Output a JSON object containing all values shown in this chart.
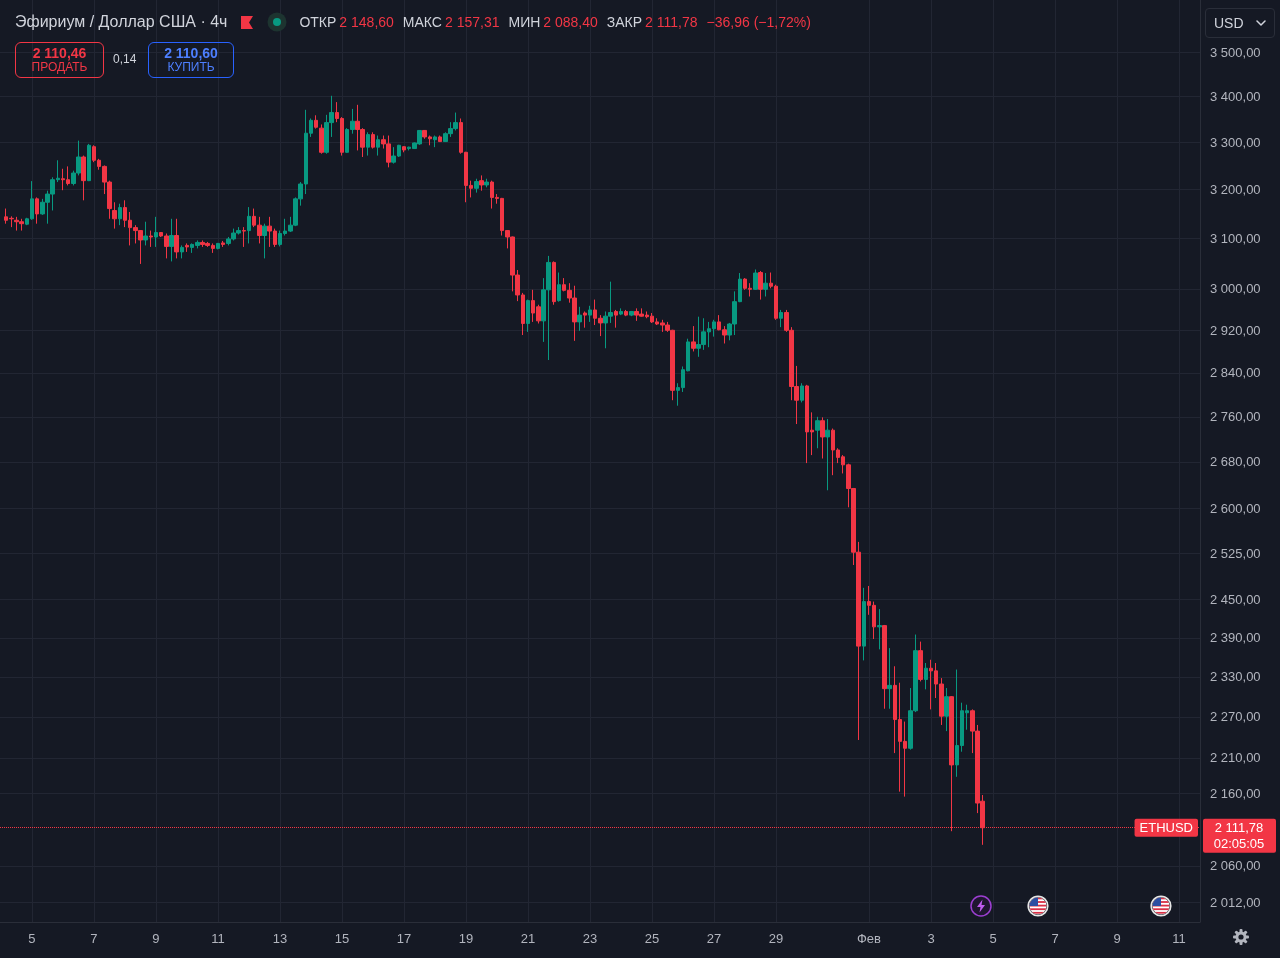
{
  "chart_data": {
    "type": "candlestick",
    "title": "Эфириум / Доллар США · 4ч",
    "x": [
      "--01-04T04:00",
      "--01-04T08:00",
      "--01-04T12:00",
      "--01-04T16:00",
      "--01-04T20:00",
      "--01-05T00:00",
      "--01-05T04:00",
      "--01-05T08:00",
      "--01-05T12:00",
      "--01-05T16:00",
      "--01-05T20:00",
      "--01-06T00:00",
      "--01-06T04:00",
      "--01-06T08:00",
      "--01-06T12:00",
      "--01-06T16:00",
      "--01-06T20:00",
      "--01-07T00:00",
      "--01-07T04:00",
      "--01-07T08:00",
      "--01-07T12:00",
      "--01-07T16:00",
      "--01-07T20:00",
      "--01-08T00:00",
      "--01-08T04:00",
      "--01-08T08:00",
      "--01-08T12:00",
      "--01-08T16:00",
      "--01-08T20:00",
      "--01-09T00:00",
      "--01-09T04:00",
      "--01-09T08:00",
      "--01-09T12:00",
      "--01-09T16:00",
      "--01-09T20:00",
      "--01-10T00:00",
      "--01-10T04:00",
      "--01-10T08:00",
      "--01-10T12:00",
      "--01-10T16:00",
      "--01-10T20:00",
      "--01-11T00:00",
      "--01-11T04:00",
      "--01-11T08:00",
      "--01-11T12:00",
      "--01-11T16:00",
      "--01-11T20:00",
      "--01-12T00:00",
      "--01-12T04:00",
      "--01-12T08:00",
      "--01-12T12:00",
      "--01-12T16:00",
      "--01-12T20:00",
      "--01-13T00:00",
      "--01-13T04:00",
      "--01-13T08:00",
      "--01-13T12:00",
      "--01-13T16:00",
      "--01-13T20:00",
      "--01-14T00:00",
      "--01-14T04:00",
      "--01-14T08:00",
      "--01-14T12:00",
      "--01-14T16:00",
      "--01-14T20:00",
      "--01-15T00:00",
      "--01-15T04:00",
      "--01-15T08:00",
      "--01-15T12:00",
      "--01-15T16:00",
      "--01-15T20:00",
      "--01-16T00:00",
      "--01-16T04:00",
      "--01-16T08:00",
      "--01-16T12:00",
      "--01-16T16:00",
      "--01-16T20:00",
      "--01-17T00:00",
      "--01-17T04:00",
      "--01-17T08:00",
      "--01-17T12:00",
      "--01-17T16:00",
      "--01-17T20:00",
      "--01-18T00:00",
      "--01-18T04:00",
      "--01-18T08:00",
      "--01-18T12:00",
      "--01-18T16:00",
      "--01-18T20:00",
      "--01-19T00:00",
      "--01-19T04:00",
      "--01-19T08:00",
      "--01-19T12:00",
      "--01-19T16:00",
      "--01-19T20:00",
      "--01-20T00:00",
      "--01-20T04:00",
      "--01-20T08:00",
      "--01-20T12:00",
      "--01-20T16:00",
      "--01-20T20:00",
      "--01-21T00:00",
      "--01-21T04:00",
      "--01-21T08:00",
      "--01-21T12:00",
      "--01-21T16:00",
      "--01-21T20:00",
      "--01-22T00:00",
      "--01-22T04:00",
      "--01-22T08:00",
      "--01-22T12:00",
      "--01-22T16:00",
      "--01-22T20:00",
      "--01-23T00:00",
      "--01-23T04:00",
      "--01-23T08:00",
      "--01-23T12:00",
      "--01-23T16:00",
      "--01-23T20:00",
      "--01-24T00:00",
      "--01-24T04:00",
      "--01-24T08:00",
      "--01-24T12:00",
      "--01-24T16:00",
      "--01-24T20:00",
      "--01-25T00:00",
      "--01-25T04:00",
      "--01-25T08:00",
      "--01-25T12:00",
      "--01-25T16:00",
      "--01-25T20:00",
      "--01-26T00:00",
      "--01-26T04:00",
      "--01-26T08:00",
      "--01-26T12:00",
      "--01-26T16:00",
      "--01-26T20:00",
      "--01-27T00:00",
      "--01-27T04:00",
      "--01-27T08:00",
      "--01-27T12:00",
      "--01-27T16:00",
      "--01-27T20:00",
      "--01-28T00:00",
      "--01-28T04:00",
      "--01-28T08:00",
      "--01-28T12:00",
      "--01-28T16:00",
      "--01-28T20:00",
      "--01-29T00:00",
      "--01-29T04:00",
      "--01-29T08:00",
      "--01-29T12:00",
      "--01-29T16:00",
      "--01-29T20:00",
      "--01-30T00:00",
      "--01-30T04:00",
      "--01-30T08:00",
      "--01-30T12:00",
      "--01-30T16:00",
      "--01-30T20:00",
      "--01-31T00:00",
      "--01-31T04:00",
      "--01-31T08:00",
      "--01-31T12:00",
      "--01-31T16:00",
      "--01-31T20:00",
      "--02-01T00:00",
      "--02-01T04:00",
      "--02-01T08:00",
      "--02-01T12:00",
      "--02-01T16:00",
      "--02-01T20:00",
      "--02-02T00:00",
      "--02-02T04:00",
      "--02-02T08:00",
      "--02-02T12:00",
      "--02-02T16:00",
      "--02-02T20:00",
      "--02-03T00:00",
      "--02-03T04:00",
      "--02-03T08:00",
      "--02-03T12:00",
      "--02-03T16:00",
      "--02-03T20:00",
      "--02-04T00:00",
      "--02-04T04:00",
      "--02-04T08:00",
      "--02-04T12:00",
      "--02-04T16:00"
    ],
    "ohlc": [
      [
        3144,
        3161,
        3130,
        3137
      ],
      [
        3141,
        3145,
        3123,
        3140
      ],
      [
        3137,
        3144,
        3116,
        3134
      ],
      [
        3134,
        3140,
        3116,
        3130
      ],
      [
        3129,
        3142,
        3127,
        3140
      ],
      [
        3140,
        3218,
        3138,
        3181
      ],
      [
        3181,
        3184,
        3130,
        3150
      ],
      [
        3150,
        3181,
        3148,
        3174
      ],
      [
        3174,
        3198,
        3130,
        3191
      ],
      [
        3191,
        3226,
        3157,
        3221
      ],
      [
        3221,
        3262,
        3216,
        3224
      ],
      [
        3223,
        3244,
        3199,
        3221
      ],
      [
        3221,
        3249,
        3209,
        3213
      ],
      [
        3213,
        3240,
        3209,
        3235
      ],
      [
        3235,
        3304,
        3230,
        3269
      ],
      [
        3269,
        3272,
        3178,
        3219
      ],
      [
        3219,
        3297,
        3218,
        3294
      ],
      [
        3291,
        3294,
        3258,
        3262
      ],
      [
        3262,
        3265,
        3242,
        3249
      ],
      [
        3249,
        3251,
        3191,
        3216
      ],
      [
        3216,
        3219,
        3140,
        3161
      ],
      [
        3157,
        3174,
        3120,
        3140
      ],
      [
        3140,
        3171,
        3127,
        3163
      ],
      [
        3163,
        3178,
        3123,
        3137
      ],
      [
        3137,
        3154,
        3086,
        3122
      ],
      [
        3122,
        3127,
        3090,
        3116
      ],
      [
        3116,
        3117,
        3049,
        3097
      ],
      [
        3097,
        3134,
        3086,
        3105
      ],
      [
        3105,
        3116,
        3083,
        3103
      ],
      [
        3103,
        3144,
        3083,
        3112
      ],
      [
        3112,
        3113,
        3103,
        3105
      ],
      [
        3105,
        3110,
        3060,
        3084
      ],
      [
        3084,
        3140,
        3054,
        3106
      ],
      [
        3106,
        3140,
        3060,
        3073
      ],
      [
        3073,
        3086,
        3060,
        3082
      ],
      [
        3086,
        3090,
        3073,
        3083
      ],
      [
        3082,
        3090,
        3071,
        3088
      ],
      [
        3086,
        3096,
        3080,
        3092
      ],
      [
        3092,
        3096,
        3083,
        3088
      ],
      [
        3090,
        3093,
        3083,
        3086
      ],
      [
        3086,
        3090,
        3071,
        3080
      ],
      [
        3080,
        3091,
        3078,
        3090
      ],
      [
        3091,
        3095,
        3083,
        3088
      ],
      [
        3090,
        3103,
        3086,
        3099
      ],
      [
        3099,
        3120,
        3096,
        3111
      ],
      [
        3111,
        3123,
        3108,
        3116
      ],
      [
        3116,
        3123,
        3083,
        3115
      ],
      [
        3116,
        3164,
        3090,
        3145
      ],
      [
        3145,
        3161,
        3123,
        3127
      ],
      [
        3127,
        3144,
        3090,
        3106
      ],
      [
        3106,
        3130,
        3060,
        3125
      ],
      [
        3125,
        3144,
        3083,
        3115
      ],
      [
        3115,
        3120,
        3083,
        3088
      ],
      [
        3088,
        3116,
        3084,
        3110
      ],
      [
        3110,
        3140,
        3106,
        3115
      ],
      [
        3115,
        3144,
        3113,
        3127
      ],
      [
        3127,
        3184,
        3125,
        3181
      ],
      [
        3181,
        3216,
        3167,
        3212
      ],
      [
        3212,
        3371,
        3191,
        3320
      ],
      [
        3320,
        3352,
        3312,
        3348
      ],
      [
        3348,
        3359,
        3330,
        3333
      ],
      [
        3331,
        3339,
        3276,
        3279
      ],
      [
        3279,
        3360,
        3276,
        3343
      ],
      [
        3343,
        3402,
        3312,
        3365
      ],
      [
        3365,
        3388,
        3344,
        3352
      ],
      [
        3352,
        3355,
        3272,
        3279
      ],
      [
        3279,
        3331,
        3278,
        3328
      ],
      [
        3328,
        3373,
        3319,
        3346
      ],
      [
        3346,
        3382,
        3283,
        3328
      ],
      [
        3328,
        3331,
        3269,
        3290
      ],
      [
        3290,
        3322,
        3272,
        3317
      ],
      [
        3317,
        3322,
        3287,
        3290
      ],
      [
        3290,
        3315,
        3272,
        3306
      ],
      [
        3306,
        3315,
        3287,
        3297
      ],
      [
        3297,
        3315,
        3247,
        3258
      ],
      [
        3258,
        3290,
        3255,
        3271
      ],
      [
        3271,
        3295,
        3269,
        3294
      ],
      [
        3291,
        3292,
        3279,
        3284
      ],
      [
        3287,
        3291,
        3283,
        3290
      ],
      [
        3287,
        3300,
        3286,
        3299
      ],
      [
        3297,
        3327,
        3295,
        3326
      ],
      [
        3326,
        3327,
        3308,
        3312
      ],
      [
        3312,
        3315,
        3294,
        3308
      ],
      [
        3306,
        3315,
        3290,
        3312
      ],
      [
        3312,
        3315,
        3301,
        3302
      ],
      [
        3302,
        3322,
        3301,
        3319
      ],
      [
        3319,
        3344,
        3312,
        3330
      ],
      [
        3330,
        3365,
        3326,
        3343
      ],
      [
        3343,
        3352,
        3276,
        3279
      ],
      [
        3279,
        3280,
        3174,
        3209
      ],
      [
        3209,
        3219,
        3184,
        3203
      ],
      [
        3203,
        3223,
        3194,
        3217
      ],
      [
        3219,
        3230,
        3198,
        3210
      ],
      [
        3210,
        3223,
        3205,
        3216
      ],
      [
        3216,
        3219,
        3161,
        3184
      ],
      [
        3184,
        3191,
        3171,
        3182
      ],
      [
        3182,
        3183,
        3106,
        3116
      ],
      [
        3116,
        3117,
        3080,
        3103
      ],
      [
        3103,
        3104,
        2995,
        3027
      ],
      [
        3027,
        3037,
        2976,
        2988
      ],
      [
        2988,
        2992,
        2911,
        2933
      ],
      [
        2933,
        2979,
        2917,
        2977
      ],
      [
        2977,
        2998,
        2936,
        2953
      ],
      [
        2965,
        2969,
        2933,
        2938
      ],
      [
        2938,
        3021,
        2898,
        2998
      ],
      [
        2998,
        3065,
        2864,
        3052
      ],
      [
        3052,
        3054,
        2969,
        2975
      ],
      [
        2977,
        3032,
        2975,
        3008
      ],
      [
        3008,
        3021,
        2995,
        2997
      ],
      [
        2997,
        3011,
        2973,
        2982
      ],
      [
        2982,
        3006,
        2900,
        2936
      ],
      [
        2936,
        2965,
        2919,
        2949
      ],
      [
        2953,
        2956,
        2925,
        2949
      ],
      [
        2949,
        2967,
        2936,
        2959
      ],
      [
        2959,
        2979,
        2930,
        2943
      ],
      [
        2943,
        2949,
        2909,
        2934
      ],
      [
        2934,
        2956,
        2886,
        2947
      ],
      [
        2947,
        3014,
        2934,
        2954
      ],
      [
        2956,
        2959,
        2925,
        2949
      ],
      [
        2951,
        2962,
        2949,
        2956
      ],
      [
        2956,
        2959,
        2947,
        2949
      ],
      [
        2949,
        2957,
        2947,
        2956
      ],
      [
        2956,
        2962,
        2938,
        2949
      ],
      [
        2951,
        2962,
        2946,
        2947
      ],
      [
        2949,
        2956,
        2943,
        2946
      ],
      [
        2947,
        2953,
        2934,
        2936
      ],
      [
        2936,
        2943,
        2930,
        2932
      ],
      [
        2934,
        2940,
        2917,
        2930
      ],
      [
        2930,
        2936,
        2917,
        2920
      ],
      [
        2920,
        2921,
        2790,
        2808
      ],
      [
        2808,
        2821,
        2780,
        2813
      ],
      [
        2813,
        2852,
        2805,
        2846
      ],
      [
        2844,
        2904,
        2843,
        2898
      ],
      [
        2898,
        2928,
        2880,
        2886
      ],
      [
        2886,
        2946,
        2870,
        2893
      ],
      [
        2893,
        2943,
        2883,
        2917
      ],
      [
        2917,
        2936,
        2888,
        2923
      ],
      [
        2923,
        2940,
        2908,
        2936
      ],
      [
        2936,
        2949,
        2920,
        2921
      ],
      [
        2921,
        2928,
        2895,
        2911
      ],
      [
        2911,
        2934,
        2901,
        2932
      ],
      [
        2932,
        2995,
        2911,
        2975
      ],
      [
        2975,
        3031,
        2974,
        3019
      ],
      [
        3019,
        3021,
        2998,
        3001
      ],
      [
        3001,
        3011,
        2985,
        2999
      ],
      [
        2999,
        3038,
        2998,
        3031
      ],
      [
        3032,
        3035,
        2979,
        2999
      ],
      [
        2999,
        3031,
        2985,
        3011
      ],
      [
        3011,
        3032,
        3001,
        3005
      ],
      [
        3005,
        3008,
        2940,
        2943
      ],
      [
        2943,
        2959,
        2926,
        2954
      ],
      [
        2954,
        2959,
        2917,
        2920
      ],
      [
        2920,
        2926,
        2790,
        2815
      ],
      [
        2815,
        2853,
        2747,
        2790
      ],
      [
        2790,
        2821,
        2786,
        2816
      ],
      [
        2816,
        2818,
        2678,
        2733
      ],
      [
        2736,
        2768,
        2692,
        2733
      ],
      [
        2736,
        2760,
        2704,
        2753
      ],
      [
        2753,
        2759,
        2686,
        2724
      ],
      [
        2724,
        2756,
        2631,
        2736
      ],
      [
        2736,
        2739,
        2657,
        2701
      ],
      [
        2701,
        2704,
        2678,
        2688
      ],
      [
        2689,
        2692,
        2660,
        2675
      ],
      [
        2675,
        2677,
        2602,
        2634
      ],
      [
        2634,
        2635,
        2506,
        2527
      ],
      [
        2527,
        2544,
        2236,
        2377
      ],
      [
        2377,
        2469,
        2355,
        2447
      ],
      [
        2447,
        2472,
        2426,
        2441
      ],
      [
        2441,
        2447,
        2388,
        2407
      ],
      [
        2407,
        2435,
        2372,
        2409
      ],
      [
        2409,
        2410,
        2282,
        2312
      ],
      [
        2312,
        2374,
        2282,
        2317
      ],
      [
        2317,
        2346,
        2217,
        2266
      ],
      [
        2266,
        2321,
        2162,
        2234
      ],
      [
        2234,
        2263,
        2155,
        2224
      ],
      [
        2224,
        2313,
        2222,
        2279
      ],
      [
        2279,
        2395,
        2277,
        2370
      ],
      [
        2370,
        2384,
        2323,
        2326
      ],
      [
        2326,
        2351,
        2311,
        2343
      ],
      [
        2343,
        2356,
        2281,
        2339
      ],
      [
        2339,
        2351,
        2298,
        2319
      ],
      [
        2319,
        2328,
        2258,
        2271
      ],
      [
        2271,
        2313,
        2249,
        2300
      ],
      [
        2300,
        2301,
        2107,
        2200
      ],
      [
        2200,
        2341,
        2183,
        2228
      ],
      [
        2228,
        2291,
        2219,
        2279
      ],
      [
        2276,
        2288,
        2251,
        2279
      ],
      [
        2279,
        2281,
        2217,
        2249
      ],
      [
        2249,
        2258,
        2132,
        2146
      ],
      [
        2148.6,
        2157.31,
        2088.4,
        2111.78
      ]
    ],
    "colors": [
      "#f23645",
      "#f23645",
      "#f23645",
      "#f23645",
      "#089981",
      "#089981",
      "#f23645",
      "#089981",
      "#089981",
      "#089981",
      "#089981",
      "#f23645",
      "#f23645",
      "#089981",
      "#089981",
      "#f23645",
      "#089981",
      "#f23645",
      "#f23645",
      "#f23645",
      "#f23645",
      "#f23645",
      "#089981",
      "#f23645",
      "#f23645",
      "#f23645",
      "#f23645",
      "#089981",
      "#f23645",
      "#089981",
      "#f23645",
      "#f23645",
      "#089981",
      "#f23645",
      "#089981",
      "#f23645",
      "#089981",
      "#089981",
      "#f23645",
      "#f23645",
      "#f23645",
      "#089981",
      "#f23645",
      "#089981",
      "#089981",
      "#089981",
      "#f23645",
      "#089981",
      "#f23645",
      "#f23645",
      "#089981",
      "#f23645",
      "#f23645",
      "#089981",
      "#089981",
      "#089981",
      "#089981",
      "#089981",
      "#089981",
      "#089981",
      "#f23645",
      "#f23645",
      "#089981",
      "#089981",
      "#f23645",
      "#f23645",
      "#089981",
      "#089981",
      "#f23645",
      "#f23645",
      "#089981",
      "#f23645",
      "#089981",
      "#f23645",
      "#f23645",
      "#089981",
      "#089981",
      "#f23645",
      "#089981",
      "#089981",
      "#089981",
      "#f23645",
      "#f23645",
      "#089981",
      "#f23645",
      "#089981",
      "#089981",
      "#089981",
      "#f23645",
      "#f23645",
      "#f23645",
      "#089981",
      "#f23645",
      "#089981",
      "#f23645",
      "#f23645",
      "#f23645",
      "#f23645",
      "#f23645",
      "#f23645",
      "#f23645",
      "#089981",
      "#f23645",
      "#f23645",
      "#089981",
      "#089981",
      "#f23645",
      "#089981",
      "#f23645",
      "#f23645",
      "#f23645",
      "#089981",
      "#f23645",
      "#089981",
      "#f23645",
      "#f23645",
      "#089981",
      "#089981",
      "#f23645",
      "#089981",
      "#f23645",
      "#089981",
      "#f23645",
      "#f23645",
      "#f23645",
      "#f23645",
      "#f23645",
      "#f23645",
      "#f23645",
      "#f23645",
      "#089981",
      "#089981",
      "#089981",
      "#f23645",
      "#089981",
      "#089981",
      "#089981",
      "#089981",
      "#f23645",
      "#f23645",
      "#089981",
      "#089981",
      "#089981",
      "#f23645",
      "#f23645",
      "#089981",
      "#f23645",
      "#089981",
      "#f23645",
      "#f23645",
      "#089981",
      "#f23645",
      "#f23645",
      "#f23645",
      "#089981",
      "#f23645",
      "#f23645",
      "#089981",
      "#f23645",
      "#089981",
      "#f23645",
      "#f23645",
      "#f23645",
      "#f23645",
      "#f23645",
      "#f23645",
      "#089981",
      "#f23645",
      "#f23645",
      "#089981",
      "#f23645",
      "#089981",
      "#f23645",
      "#f23645",
      "#f23645",
      "#089981",
      "#089981",
      "#f23645",
      "#089981",
      "#f23645",
      "#f23645",
      "#f23645",
      "#089981",
      "#f23645",
      "#089981",
      "#089981",
      "#089981",
      "#f23645",
      "#f23645",
      "#f23645"
    ],
    "xlim": [
      "--01-03T23:15",
      "--02-11T16:15"
    ],
    "xticks": [
      {
        "value": "--01-05",
        "label": "5"
      },
      {
        "value": "--01-07",
        "label": "7"
      },
      {
        "value": "--01-09",
        "label": "9"
      },
      {
        "value": "--01-11",
        "label": "11"
      },
      {
        "value": "--01-13",
        "label": "13"
      },
      {
        "value": "--01-15",
        "label": "15"
      },
      {
        "value": "--01-17",
        "label": "17"
      },
      {
        "value": "--01-19",
        "label": "19"
      },
      {
        "value": "--01-21",
        "label": "21"
      },
      {
        "value": "--01-23",
        "label": "23"
      },
      {
        "value": "--01-25",
        "label": "25"
      },
      {
        "value": "--01-27",
        "label": "27"
      },
      {
        "value": "--01-29",
        "label": "29"
      },
      {
        "value": "--02-01",
        "label": "Фев"
      },
      {
        "value": "--02-03",
        "label": "3"
      },
      {
        "value": "--02-05",
        "label": "5"
      },
      {
        "value": "--02-07",
        "label": "7"
      },
      {
        "value": "--02-09",
        "label": "9"
      },
      {
        "value": "--02-11",
        "label": "11"
      }
    ],
    "ylim": [
      1986,
      3621
    ],
    "yticks": [
      {
        "value": 3500,
        "label": "3 500,00"
      },
      {
        "value": 3400,
        "label": "3 400,00"
      },
      {
        "value": 3300,
        "label": "3 300,00"
      },
      {
        "value": 3200,
        "label": "3 200,00"
      },
      {
        "value": 3100,
        "label": "3 100,00"
      },
      {
        "value": 3000,
        "label": "3 000,00"
      },
      {
        "value": 2920,
        "label": "2 920,00"
      },
      {
        "value": 2840,
        "label": "2 840,00"
      },
      {
        "value": 2760,
        "label": "2 760,00"
      },
      {
        "value": 2680,
        "label": "2 680,00"
      },
      {
        "value": 2600,
        "label": "2 600,00"
      },
      {
        "value": 2525,
        "label": "2 525,00"
      },
      {
        "value": 2450,
        "label": "2 450,00"
      },
      {
        "value": 2390,
        "label": "2 390,00"
      },
      {
        "value": 2330,
        "label": "2 330,00"
      },
      {
        "value": 2270,
        "label": "2 270,00"
      },
      {
        "value": 2210,
        "label": "2 210,00"
      },
      {
        "value": 2160,
        "label": "2 160,00"
      },
      {
        "value": 2060,
        "label": "2 060,00"
      },
      {
        "value": 2012,
        "label": "2 012,00"
      }
    ],
    "log": true,
    "grid": true,
    "ref_lines": [
      {
        "axis": "y",
        "value": 2111.78,
        "label": "ETHUSD",
        "color": "#f23645",
        "line_style": "dotted"
      }
    ],
    "annotations": [
      "ОТКР",
      "2 148,60",
      "МАКС",
      "2 157,31",
      "МИН",
      "2 088,40",
      "ЗАКР",
      "2 111,78",
      "−36,96 (−1,72%)",
      "2 110,46",
      "ПРОДАТЬ",
      "0,14",
      "2 110,60",
      "КУПИТЬ",
      "USD",
      "2 111,78",
      "02:05:05"
    ]
  }
}
